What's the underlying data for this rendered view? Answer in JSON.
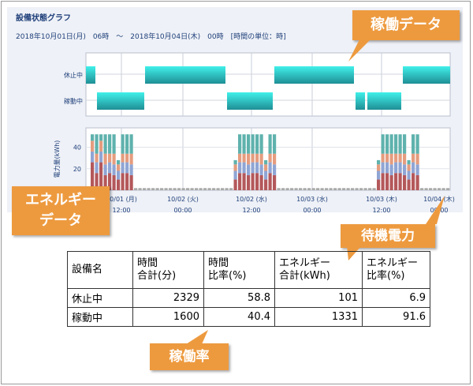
{
  "panel": {
    "title": "設備状態グラフ",
    "subtitle": "2018年10月01日(月)　06時　～　2018年10月04日(木)　00時　[時間の単位：時]"
  },
  "state_chart": {
    "categories": [
      "休止中",
      "稼動中"
    ],
    "colors": {
      "休止中": "#2fb7b7",
      "稼動中": "#2fb7b7"
    }
  },
  "chart_data": {
    "type": "bar",
    "ylabel": "電力量(kWh)",
    "y_ticks": [
      20,
      40
    ],
    "ylim": [
      0,
      58
    ],
    "x_tick_labels": [
      {
        "date": "10/01 (月)",
        "time": "12:00"
      },
      {
        "date": "10/02 (火)",
        "time": "00:00"
      },
      {
        "date": "10/02 (水)",
        "time": "12:00"
      },
      {
        "date": "10/03 (水)",
        "time": "00:00"
      },
      {
        "date": "10/03 (木)",
        "time": "12:00"
      },
      {
        "date": "10/04 (木)",
        "time": "00:00"
      }
    ],
    "series_colors": [
      "#b4585b",
      "#8fa5d4",
      "#e59c7e",
      "#5fb2ad"
    ],
    "blocks": [
      {
        "start": 0,
        "values": [
          [
            26,
            10,
            10,
            6
          ],
          [
            16,
            10,
            8,
            18
          ],
          [
            26,
            10,
            10,
            6
          ],
          [
            14,
            10,
            10,
            18
          ],
          [
            16,
            10,
            8,
            18
          ],
          [
            14,
            10,
            10,
            18
          ],
          [
            10,
            8,
            6,
            4
          ],
          [
            16,
            10,
            8,
            18
          ],
          [
            16,
            10,
            8,
            18
          ],
          [
            14,
            10,
            10,
            18
          ]
        ]
      },
      {
        "start": 33,
        "values": [
          [
            10,
            8,
            6,
            4
          ],
          [
            16,
            10,
            8,
            18
          ],
          [
            16,
            10,
            8,
            18
          ],
          [
            14,
            10,
            10,
            18
          ],
          [
            16,
            10,
            8,
            18
          ],
          [
            16,
            10,
            8,
            18
          ],
          [
            14,
            10,
            10,
            18
          ],
          [
            10,
            8,
            6,
            4
          ],
          [
            16,
            10,
            8,
            18
          ],
          [
            14,
            10,
            10,
            18
          ]
        ]
      },
      {
        "start": 66,
        "values": [
          [
            10,
            8,
            6,
            4
          ],
          [
            16,
            10,
            8,
            18
          ],
          [
            16,
            10,
            8,
            18
          ],
          [
            14,
            10,
            10,
            18
          ],
          [
            16,
            10,
            8,
            18
          ],
          [
            16,
            10,
            8,
            18
          ],
          [
            14,
            10,
            10,
            18
          ],
          [
            10,
            8,
            6,
            4
          ],
          [
            16,
            10,
            8,
            18
          ],
          [
            14,
            10,
            10,
            18
          ]
        ]
      }
    ],
    "standby_level": 2
  },
  "callouts": {
    "operation_data": "稼働データ",
    "energy_data_line1": "エネルギー",
    "energy_data_line2": "データ",
    "standby_power": "待機電力",
    "operation_rate": "稼働率"
  },
  "table": {
    "headers": [
      {
        "line1": "設備名",
        "line2": ""
      },
      {
        "line1": "時間",
        "line2": "合計(分)"
      },
      {
        "line1": "時間",
        "line2": "比率(%)"
      },
      {
        "line1": "エネルギー",
        "line2": "合計(kWh)"
      },
      {
        "line1": "エネルギー",
        "line2": "比率(%)"
      }
    ],
    "rows": [
      {
        "name": "休止中",
        "time_total": "2329",
        "time_ratio": "58.8",
        "energy_total": "101",
        "energy_ratio": "6.9"
      },
      {
        "name": "稼動中",
        "time_total": "1600",
        "time_ratio": "40.4",
        "energy_total": "1331",
        "energy_ratio": "91.6"
      }
    ]
  }
}
